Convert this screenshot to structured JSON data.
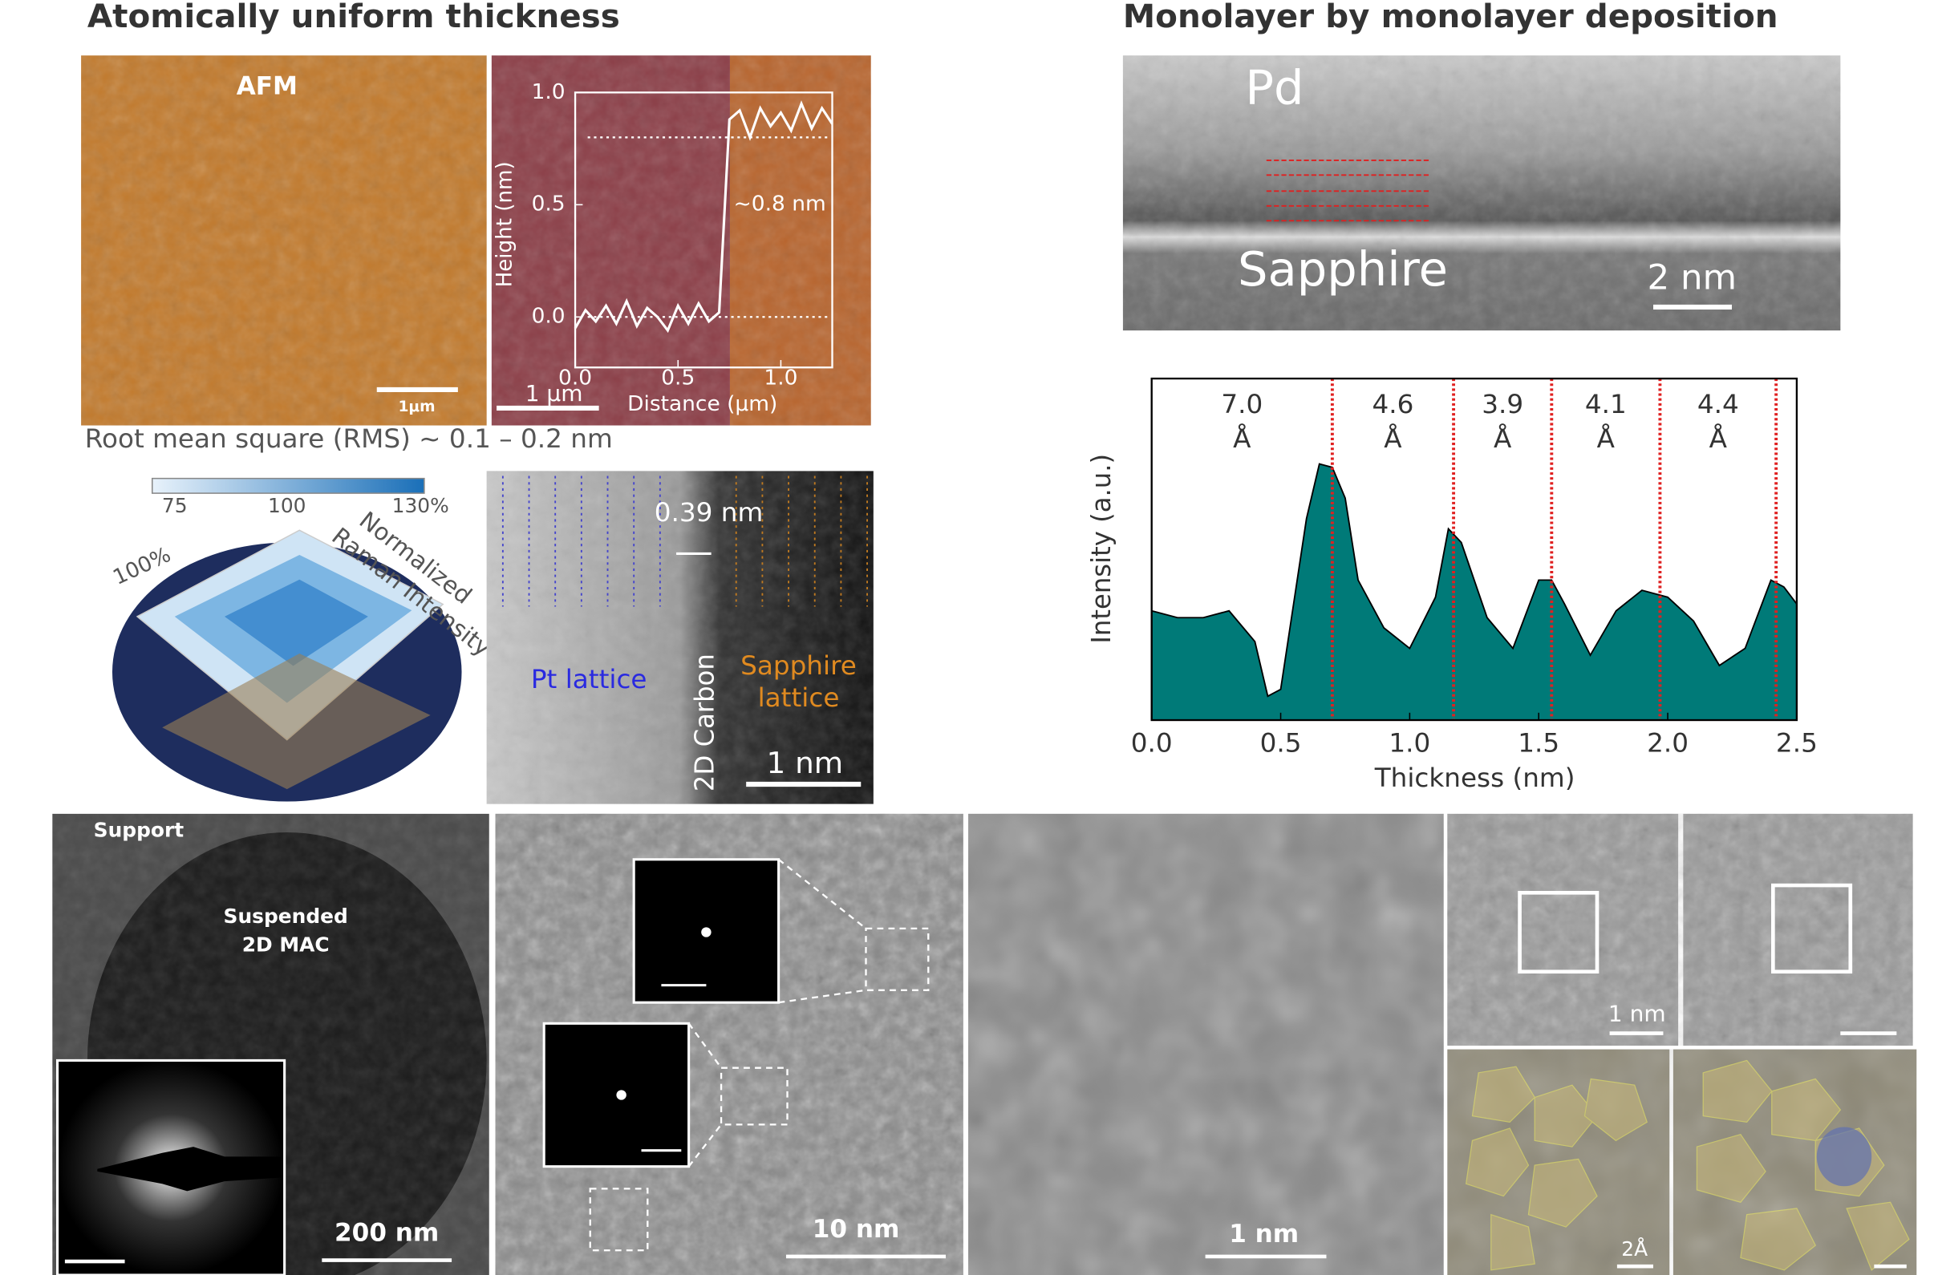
{
  "headings": [
    "Atomically uniform thickness",
    "Monolayer by monolayer deposition"
  ],
  "afm": {
    "label": "AFM",
    "scale": "1μm"
  },
  "rms": "Root mean square (RMS) ~ 0.1 – 0.2 nm",
  "raman": {
    "colorbar": [
      "75",
      "100",
      "130%"
    ],
    "ring": "100%",
    "axis": [
      "Normalized",
      "Raman Intensity"
    ]
  },
  "stem": {
    "spacing": "0.39 nm",
    "left": "Pt lattice",
    "middle": "2D Carbon",
    "right": [
      "Sapphire",
      "lattice"
    ],
    "scale": "1 nm"
  },
  "tem": {
    "top": "Pd",
    "bottom": "Sapphire",
    "scale": "2 nm"
  },
  "bottom": {
    "support": "Support",
    "suspended": [
      "Suspended",
      "2D MAC"
    ],
    "scales": [
      "200 nm",
      "10 nm",
      "1 nm",
      "1 nm",
      "2Å"
    ]
  },
  "chart_data": [
    {
      "type": "line",
      "x_label": "Distance (μm)",
      "y_label": "Height (nm)",
      "annotation": "~0.8 nm",
      "scale_bar": "1 μm",
      "color": "#ffffff",
      "ref_lines": [
        0,
        0.8
      ],
      "x": [
        0.0,
        0.05,
        0.1,
        0.15,
        0.2,
        0.25,
        0.3,
        0.35,
        0.4,
        0.45,
        0.5,
        0.55,
        0.6,
        0.65,
        0.7,
        0.75,
        0.8,
        0.85,
        0.9,
        0.95,
        1.0,
        1.05,
        1.1,
        1.15,
        1.2,
        1.25
      ],
      "values": [
        -0.05,
        0.03,
        -0.02,
        0.05,
        -0.03,
        0.07,
        -0.04,
        0.04,
        0.0,
        -0.06,
        0.05,
        -0.03,
        0.06,
        -0.02,
        0.02,
        0.88,
        0.92,
        0.8,
        0.93,
        0.85,
        0.91,
        0.83,
        0.95,
        0.84,
        0.93,
        0.86
      ],
      "xlim": [
        0,
        1.25
      ],
      "ylim": [
        -0.225,
        1.0
      ],
      "xticks": [
        {
          "value": 0,
          "label": "0.0"
        },
        0.5,
        {
          "value": 1,
          "label": "1.0"
        }
      ],
      "yticks": [
        {
          "value": 0,
          "label": "0.0"
        },
        0.5,
        {
          "value": 1,
          "label": "1.0"
        }
      ]
    },
    {
      "type": "area",
      "x_label": "Thickness (nm)",
      "y_label": "Intensity (a.u.)",
      "color": "#007a78",
      "divider_color": "#e02020",
      "dividers": [
        0.7,
        1.17,
        1.55,
        1.97,
        2.42
      ],
      "layer_labels": [
        "7.0",
        "4.6",
        "3.9",
        "4.1",
        "4.4"
      ],
      "layer_unit": "Å",
      "x": [
        0.0,
        0.1,
        0.2,
        0.3,
        0.4,
        0.45,
        0.5,
        0.55,
        0.6,
        0.65,
        0.7,
        0.75,
        0.8,
        0.9,
        1.0,
        1.1,
        1.15,
        1.2,
        1.3,
        1.4,
        1.5,
        1.55,
        1.6,
        1.7,
        1.8,
        1.9,
        2.0,
        2.1,
        2.2,
        2.3,
        2.4,
        2.45,
        2.5
      ],
      "values": [
        0.32,
        0.3,
        0.3,
        0.32,
        0.23,
        0.07,
        0.09,
        0.34,
        0.59,
        0.75,
        0.74,
        0.65,
        0.41,
        0.27,
        0.21,
        0.36,
        0.56,
        0.52,
        0.3,
        0.21,
        0.41,
        0.41,
        0.34,
        0.19,
        0.32,
        0.38,
        0.36,
        0.29,
        0.16,
        0.21,
        0.41,
        0.39,
        0.34
      ],
      "xlim": [
        0,
        2.5
      ],
      "ylim": [
        0,
        1
      ],
      "xticks": [
        {
          "value": 0,
          "label": "0.0"
        },
        0.5,
        {
          "value": 1,
          "label": "1.0"
        },
        1.5,
        {
          "value": 2,
          "label": "2.0"
        },
        2.5
      ]
    }
  ]
}
